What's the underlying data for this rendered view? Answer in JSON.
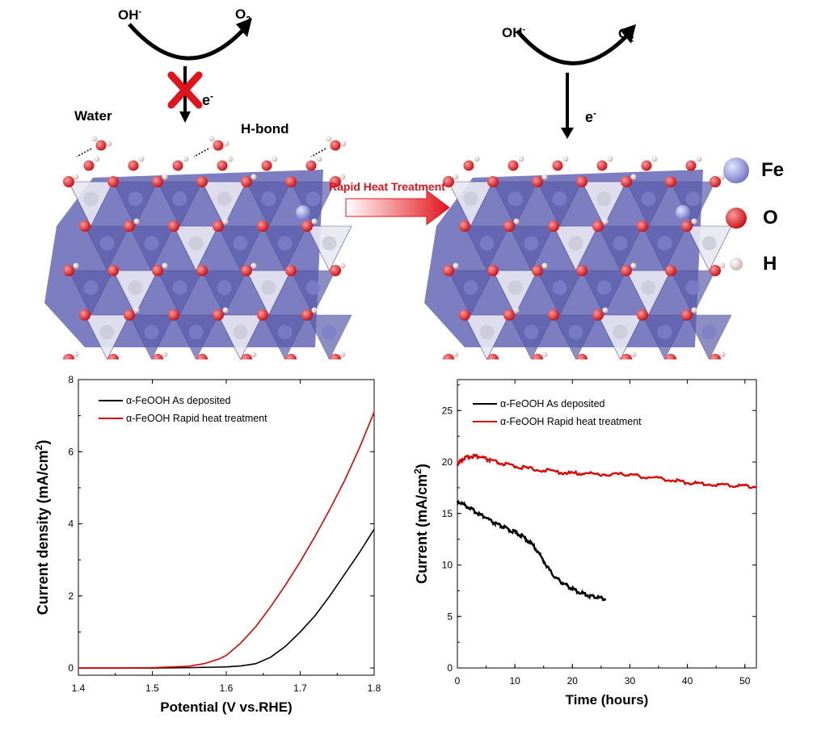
{
  "schematic": {
    "left": {
      "reactant": "OH-",
      "product": "O2",
      "electron": "e-",
      "water_label": "Water",
      "hbond_label": "H-bond"
    },
    "right": {
      "reactant": "OH-",
      "product": "O2",
      "electron": "e-"
    },
    "arrow_label": "Rapid Heat Treatment",
    "legend": [
      {
        "label": "Fe",
        "color": "#8a8fd0"
      },
      {
        "label": "O",
        "color": "#d8141c"
      },
      {
        "label": "H",
        "color": "#e7d6d0"
      }
    ],
    "colors": {
      "polyhedra": "#6567b6",
      "polyhedra_light": "#e8e8f2",
      "arrow": "#e1141c"
    }
  },
  "chart_data": [
    {
      "type": "line",
      "xlabel": "Potential (V vs.RHE)",
      "ylabel": "Current density (mA/cm2)",
      "xlim": [
        1.4,
        1.8
      ],
      "ylim": [
        -0.2,
        8
      ],
      "xticks": [
        "1.4",
        "1.5",
        "1.6",
        "1.7",
        "1.8"
      ],
      "yticks": [
        "0",
        "2",
        "4",
        "6",
        "8"
      ],
      "legend_position": "top-left",
      "series": [
        {
          "name": "α-FeOOH As deposited",
          "color": "#000000",
          "x": [
            1.4,
            1.45,
            1.5,
            1.55,
            1.6,
            1.62,
            1.64,
            1.66,
            1.68,
            1.7,
            1.72,
            1.74,
            1.76,
            1.78,
            1.8
          ],
          "y": [
            0.0,
            0.0,
            0.0,
            0.01,
            0.03,
            0.06,
            0.12,
            0.3,
            0.6,
            1.0,
            1.45,
            2.0,
            2.6,
            3.2,
            3.85
          ]
        },
        {
          "name": "α-FeOOH Rapid heat treatment",
          "color": "#e00000",
          "x": [
            1.4,
            1.45,
            1.5,
            1.55,
            1.57,
            1.59,
            1.6,
            1.62,
            1.64,
            1.66,
            1.68,
            1.7,
            1.72,
            1.74,
            1.76,
            1.78,
            1.8
          ],
          "y": [
            0.0,
            0.0,
            0.01,
            0.05,
            0.12,
            0.25,
            0.35,
            0.7,
            1.15,
            1.7,
            2.3,
            2.95,
            3.65,
            4.4,
            5.2,
            6.1,
            7.1
          ]
        }
      ]
    },
    {
      "type": "line",
      "xlabel": "Time (hours)",
      "ylabel": "Current (mA/cm2)",
      "xlim": [
        0,
        52
      ],
      "ylim": [
        0,
        28
      ],
      "xticks": [
        "0",
        "10",
        "20",
        "30",
        "40",
        "50"
      ],
      "yticks": [
        "0",
        "5",
        "10",
        "15",
        "20",
        "25"
      ],
      "legend_position": "top-left",
      "series": [
        {
          "name": "α-FeOOH As deposited",
          "color": "#000000",
          "x": [
            0,
            1,
            2,
            3,
            4,
            5,
            6,
            7,
            8,
            9,
            10,
            11,
            12,
            13,
            14,
            15,
            16,
            17,
            18,
            19,
            20,
            21,
            22,
            23,
            24,
            25,
            25.8
          ],
          "y": [
            16.2,
            15.9,
            15.6,
            15.2,
            14.9,
            14.6,
            14.2,
            13.9,
            13.7,
            13.4,
            13.2,
            12.9,
            12.5,
            12.0,
            11.3,
            10.4,
            9.5,
            8.8,
            8.4,
            8.0,
            7.7,
            7.4,
            7.2,
            7.0,
            6.9,
            6.8,
            6.7
          ]
        },
        {
          "name": "α-FeOOH Rapid heat treatment",
          "color": "#e00000",
          "x": [
            0,
            0.5,
            1,
            2,
            3,
            4,
            5,
            6,
            8,
            10,
            12,
            15,
            18,
            20,
            22,
            25,
            28,
            30,
            32,
            35,
            38,
            40,
            42,
            45,
            48,
            50,
            52
          ],
          "y": [
            19.8,
            20.1,
            20.3,
            20.5,
            20.6,
            20.5,
            20.3,
            20.1,
            19.8,
            19.6,
            19.4,
            19.2,
            19.0,
            18.9,
            18.9,
            18.8,
            18.8,
            18.8,
            18.6,
            18.4,
            18.2,
            18.0,
            17.9,
            17.8,
            17.7,
            17.7,
            17.6
          ]
        }
      ]
    }
  ]
}
